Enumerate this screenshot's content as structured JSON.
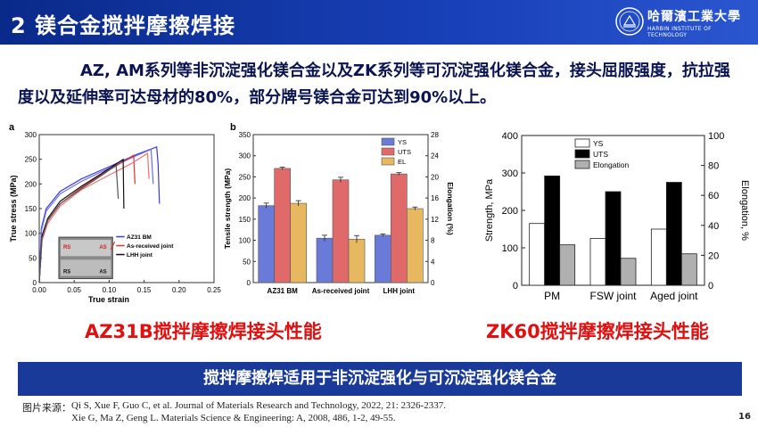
{
  "slide": {
    "title": "2 镁合金搅拌摩擦焊接",
    "logo_text_cn": "哈爾濱工業大學",
    "logo_text_en": "HARBIN INSTITUTE OF TECHNOLOGY",
    "intro": "AZ, AM系列等非沉淀强化镁合金以及ZK系列等可沉淀强化镁合金，接头屈服强度，抗拉强度以及延伸率可达母材的80%，部分牌号镁合金可达到90%以上。",
    "caption_left": "AZ31B搅拌摩擦焊接头性能",
    "caption_right": "ZK60搅拌摩擦焊接头性能",
    "banner": "搅拌摩擦焊适用于非沉淀强化与可沉淀强化镁合金",
    "source_label": "图片来源：",
    "refs": [
      "Qi S, Xue F, Guo C, et al. Journal of Materials Research and Technology, 2022, 21: 2326-2337.",
      "Xie G, Ma Z, Geng L. Materials Science & Engineering: A, 2008, 486, 1-2, 49-55."
    ],
    "page_number": "16"
  },
  "chart_data": [
    {
      "panel": "a",
      "type": "line",
      "xlabel": "True strain",
      "ylabel": "True stress (MPa)",
      "xlim": [
        0.0,
        0.25
      ],
      "ylim": [
        0,
        300
      ],
      "xticks": [
        "0.00",
        "0.05",
        "0.10",
        "0.15",
        "0.20",
        "0.25"
      ],
      "yticks": [
        "0",
        "50",
        "100",
        "150",
        "200",
        "250",
        "300"
      ],
      "series": [
        {
          "name": "AZ31 BM",
          "color": "#3a3ad8",
          "x": [
            0,
            0.003,
            0.01,
            0.03,
            0.06,
            0.1,
            0.14,
            0.168,
            0.17,
            0.172
          ],
          "y": [
            0,
            110,
            150,
            185,
            210,
            235,
            260,
            275,
            240,
            160
          ]
        },
        {
          "name": "AZ31 BM",
          "color": "#6a6af0",
          "x": [
            0,
            0.003,
            0.01,
            0.03,
            0.06,
            0.1,
            0.14,
            0.16,
            0.163
          ],
          "y": [
            0,
            105,
            145,
            180,
            205,
            232,
            258,
            270,
            200
          ]
        },
        {
          "name": "As-received joint",
          "color": "#e03030",
          "x": [
            0,
            0.004,
            0.012,
            0.03,
            0.06,
            0.09,
            0.12,
            0.135,
            0.137
          ],
          "y": [
            0,
            90,
            125,
            160,
            192,
            220,
            245,
            258,
            200
          ]
        },
        {
          "name": "As-received joint",
          "color": "#f07070",
          "x": [
            0,
            0.004,
            0.012,
            0.03,
            0.06,
            0.1,
            0.13,
            0.155,
            0.157
          ],
          "y": [
            0,
            85,
            120,
            155,
            188,
            218,
            240,
            262,
            210
          ]
        },
        {
          "name": "LHH joint",
          "color": "#111111",
          "x": [
            0,
            0.004,
            0.012,
            0.03,
            0.06,
            0.09,
            0.115,
            0.12,
            0.121
          ],
          "y": [
            0,
            95,
            130,
            165,
            195,
            222,
            245,
            250,
            150
          ]
        },
        {
          "name": "LHH joint",
          "color": "#555555",
          "x": [
            0,
            0.004,
            0.012,
            0.03,
            0.06,
            0.09,
            0.11,
            0.113
          ],
          "y": [
            0,
            90,
            126,
            160,
            190,
            218,
            238,
            170
          ]
        }
      ],
      "inset_labels": [
        "RS",
        "AS",
        "RS",
        "AS"
      ]
    },
    {
      "panel": "b",
      "type": "bar",
      "categories": [
        "AZ31 BM",
        "As-received joint",
        "LHH joint"
      ],
      "ylabel": "Tensile strength (MPa)",
      "ylabel_right": "Elongation (%)",
      "ylim": [
        0,
        350
      ],
      "ylim_right": [
        0,
        28
      ],
      "yticks": [
        "0",
        "50",
        "100",
        "150",
        "200",
        "250",
        "300",
        "350"
      ],
      "yticks_right": [
        "0",
        "4",
        "8",
        "12",
        "16",
        "20",
        "24",
        "28"
      ],
      "series": [
        {
          "name": "YS",
          "color": "#6a7ad8",
          "axis": "left",
          "values": [
            182,
            105,
            112
          ],
          "errors": [
            6,
            7,
            3
          ]
        },
        {
          "name": "UTS",
          "color": "#e06a6a",
          "axis": "left",
          "values": [
            270,
            243,
            257
          ],
          "errors": [
            3,
            6,
            3
          ]
        },
        {
          "name": "EL",
          "color": "#e8b860",
          "axis": "right",
          "values": [
            15,
            8.2,
            14
          ],
          "errors": [
            0.5,
            0.7,
            0.3
          ]
        }
      ]
    },
    {
      "type": "bar",
      "categories": [
        "PM",
        "FSW joint",
        "Aged joint"
      ],
      "ylabel": "Strength, MPa",
      "ylabel_right": "Elongation, %",
      "ylim": [
        0,
        400
      ],
      "ylim_right": [
        0,
        100
      ],
      "yticks": [
        "0",
        "100",
        "200",
        "300",
        "400"
      ],
      "yticks_right": [
        "0",
        "20",
        "40",
        "60",
        "80",
        "100"
      ],
      "series": [
        {
          "name": "YS",
          "color": "#ffffff",
          "axis": "left",
          "values": [
            165,
            125,
            150
          ]
        },
        {
          "name": "UTS",
          "color": "#000000",
          "axis": "left",
          "values": [
            292,
            250,
            275
          ]
        },
        {
          "name": "Elongation",
          "color": "#b0b0b0",
          "axis": "right",
          "values": [
            27,
            18,
            21
          ]
        }
      ]
    }
  ]
}
